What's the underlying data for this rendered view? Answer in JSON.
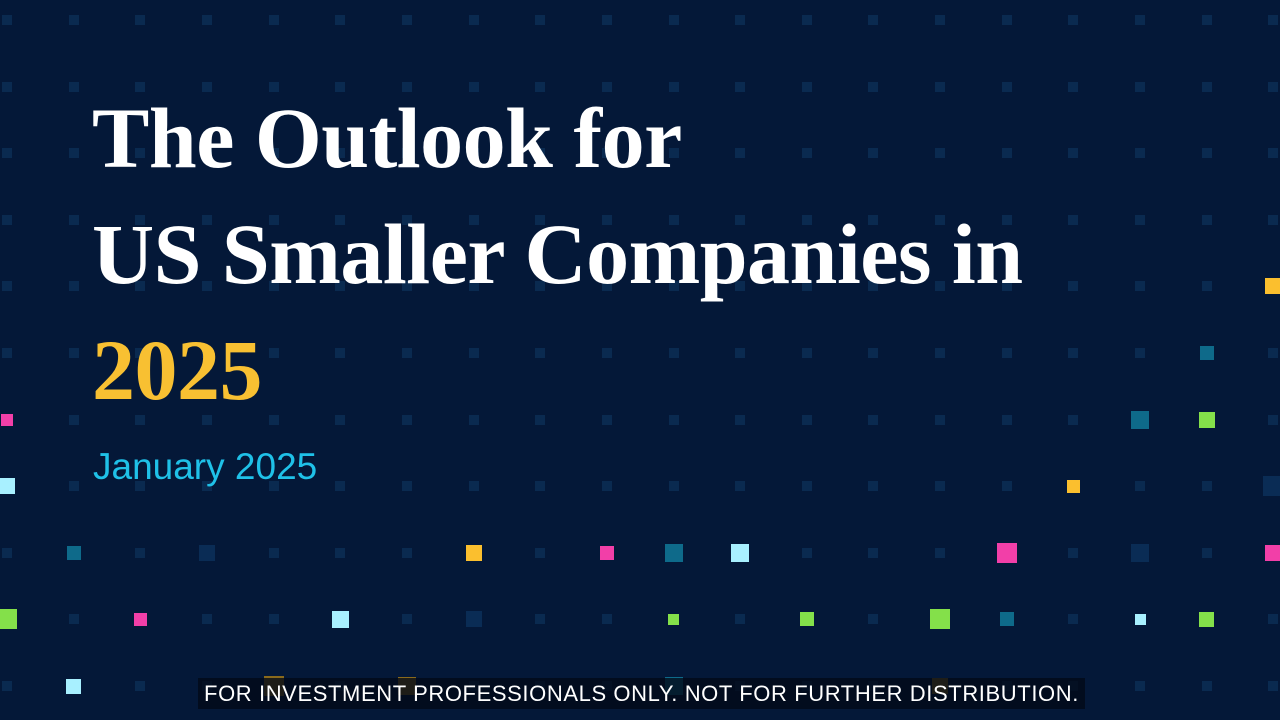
{
  "title": {
    "line1": "The Outlook for",
    "line2": "US Smaller Companies in",
    "line3": "2025"
  },
  "date": "January 2025",
  "disclaimer": "FOR INVESTMENT PROFESSIONALS ONLY. NOT FOR FURTHER DISTRIBUTION.",
  "colors": {
    "background": "#041838",
    "title": "#ffffff",
    "year": "#f8c032",
    "date": "#1fc1e8"
  }
}
